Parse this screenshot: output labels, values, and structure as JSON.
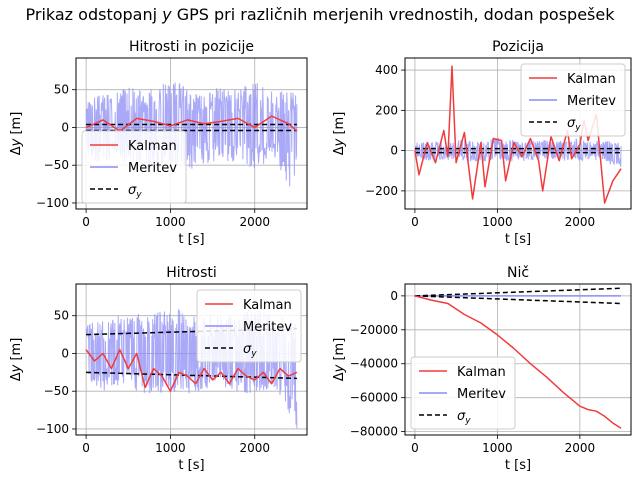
{
  "suptitle": "Prikaz odstopanj y GPS pri različnih merjenih vrednostih, dodan pospešek",
  "colors": {
    "kalman": "#f03c3c",
    "meritev": "#8c8cf5",
    "sigma": "#000000",
    "grid": "#b0b0b0"
  },
  "chart_data": [
    {
      "type": "line",
      "title": "Hitrosti in pozicije",
      "xlabel": "t [s]",
      "ylabel": "Δy [m]",
      "xlim": [
        -120,
        2620
      ],
      "ylim": [
        -108,
        92
      ],
      "xticks": [
        0,
        1000,
        2000
      ],
      "yticks": [
        -100,
        -50,
        0,
        50
      ],
      "ytick_labels": [
        "−100",
        "−50",
        "0",
        "50"
      ],
      "grid": true,
      "legend_position": "lower-left",
      "series": [
        {
          "name": "Kalman",
          "x": [
            0,
            200,
            400,
            600,
            800,
            1000,
            1200,
            1400,
            1600,
            1800,
            2000,
            2200,
            2400,
            2500
          ],
          "y": [
            0,
            10,
            -5,
            12,
            8,
            2,
            10,
            5,
            8,
            12,
            0,
            15,
            5,
            -5
          ]
        },
        {
          "name": "Meritev",
          "x": [
            0,
            250,
            500,
            750,
            1000,
            1250,
            1500,
            1750,
            2000,
            2250,
            2500
          ],
          "y_min": [
            -45,
            -50,
            -45,
            -60,
            -50,
            -55,
            -45,
            -50,
            -55,
            -45,
            -100
          ],
          "y_max": [
            40,
            45,
            55,
            50,
            65,
            50,
            55,
            50,
            60,
            50,
            45
          ]
        },
        {
          "name": "σy",
          "x": [
            0,
            2500
          ],
          "upper": [
            4,
            4
          ],
          "lower": [
            -4,
            -4
          ]
        }
      ]
    },
    {
      "type": "line",
      "title": "Pozicija",
      "xlabel": "t [s]",
      "ylabel": "Δy [m]",
      "xlim": [
        -120,
        2620
      ],
      "ylim": [
        -290,
        460
      ],
      "xticks": [
        0,
        1000,
        2000
      ],
      "yticks": [
        -200,
        0,
        200,
        400
      ],
      "ytick_labels": [
        "−200",
        "0",
        "200",
        "400"
      ],
      "grid": true,
      "legend_position": "top-right",
      "series": [
        {
          "name": "Kalman",
          "x": [
            0,
            50,
            150,
            250,
            350,
            400,
            450,
            500,
            600,
            700,
            800,
            850,
            950,
            1050,
            1100,
            1200,
            1300,
            1400,
            1500,
            1550,
            1650,
            1750,
            1850,
            1900,
            2000,
            2050,
            2100,
            2200,
            2300,
            2400,
            2500
          ],
          "y": [
            0,
            -120,
            40,
            -60,
            100,
            -30,
            420,
            -60,
            90,
            -240,
            40,
            -180,
            60,
            50,
            -150,
            40,
            -30,
            60,
            -50,
            -200,
            70,
            -50,
            100,
            -40,
            30,
            150,
            50,
            180,
            -260,
            -150,
            -90
          ]
        },
        {
          "name": "Meritev",
          "x": [
            0,
            250,
            500,
            750,
            1000,
            1250,
            1500,
            1750,
            2000,
            2250,
            2500
          ],
          "y_min": [
            -45,
            -50,
            -45,
            -60,
            -50,
            -55,
            -45,
            -50,
            -55,
            -45,
            -100
          ],
          "y_max": [
            40,
            45,
            55,
            50,
            65,
            50,
            55,
            50,
            60,
            50,
            45
          ]
        },
        {
          "name": "σy",
          "x": [
            0,
            2500
          ],
          "upper": [
            10,
            10
          ],
          "lower": [
            -10,
            -10
          ]
        }
      ]
    },
    {
      "type": "line",
      "title": "Hitrosti",
      "xlabel": "t [s]",
      "ylabel": "Δy [m]",
      "xlim": [
        -120,
        2620
      ],
      "ylim": [
        -108,
        92
      ],
      "xticks": [
        0,
        1000,
        2000
      ],
      "yticks": [
        -100,
        -50,
        0,
        50
      ],
      "ytick_labels": [
        "−100",
        "−50",
        "0",
        "50"
      ],
      "grid": true,
      "legend_position": "top-right",
      "series": [
        {
          "name": "Kalman",
          "x": [
            0,
            100,
            200,
            300,
            400,
            500,
            600,
            700,
            800,
            900,
            1000,
            1100,
            1200,
            1300,
            1400,
            1500,
            1600,
            1700,
            1800,
            1900,
            2000,
            2100,
            2200,
            2300,
            2400,
            2500
          ],
          "y": [
            5,
            -10,
            0,
            -20,
            5,
            -20,
            0,
            -45,
            -20,
            -30,
            -50,
            -25,
            -30,
            -40,
            -20,
            -35,
            -25,
            -40,
            -20,
            -30,
            -35,
            -25,
            -40,
            -20,
            -30,
            -25
          ]
        },
        {
          "name": "Meritev",
          "x": [
            0,
            250,
            500,
            750,
            1000,
            1250,
            1500,
            1750,
            2000,
            2250,
            2500
          ],
          "y_min": [
            -45,
            -50,
            -45,
            -60,
            -50,
            -55,
            -45,
            -50,
            -55,
            -45,
            -100
          ],
          "y_max": [
            40,
            45,
            55,
            50,
            65,
            50,
            55,
            50,
            60,
            50,
            45
          ]
        },
        {
          "name": "σy",
          "x": [
            0,
            2500
          ],
          "upper": [
            25,
            33
          ],
          "lower": [
            -25,
            -33
          ]
        }
      ]
    },
    {
      "type": "line",
      "title": "Nič",
      "xlabel": "t [s]",
      "ylabel": "Δy [m]",
      "xlim": [
        -120,
        2620
      ],
      "ylim": [
        -82000,
        7000
      ],
      "xticks": [
        0,
        1000,
        2000
      ],
      "yticks": [
        -80000,
        -60000,
        -40000,
        -20000,
        0
      ],
      "ytick_labels": [
        "−80000",
        "−60000",
        "−40000",
        "−20000",
        "0"
      ],
      "grid": true,
      "legend_position": "lower-left",
      "series": [
        {
          "name": "Kalman",
          "x": [
            0,
            200,
            400,
            600,
            800,
            1000,
            1200,
            1400,
            1600,
            1800,
            2000,
            2100,
            2200,
            2300,
            2400,
            2500
          ],
          "y": [
            0,
            -2500,
            -4500,
            -11000,
            -16000,
            -23000,
            -31000,
            -40000,
            -48000,
            -57000,
            -65000,
            -67000,
            -68000,
            -71000,
            -75000,
            -78000
          ]
        },
        {
          "name": "Meritev",
          "x": [
            0,
            2500
          ],
          "y": [
            0,
            0
          ]
        },
        {
          "name": "σy",
          "x": [
            0,
            2500
          ],
          "upper": [
            0,
            4500
          ],
          "lower": [
            0,
            -4500
          ]
        }
      ]
    }
  ]
}
